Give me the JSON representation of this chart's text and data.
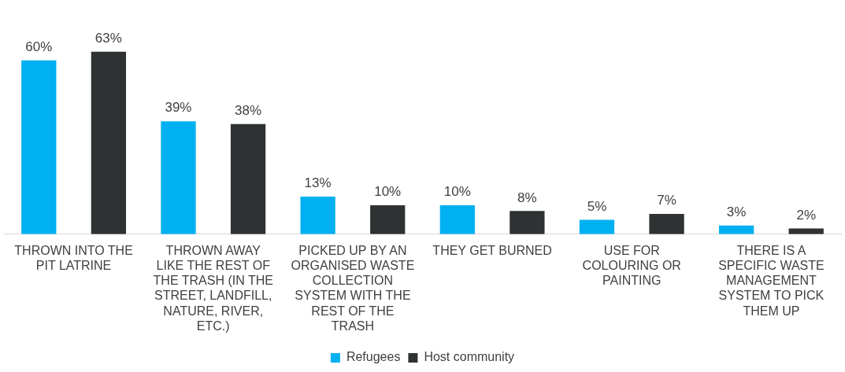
{
  "chart_data": {
    "type": "bar",
    "categories": [
      "THROWN INTO THE PIT LATRINE",
      "THROWN AWAY LIKE THE REST OF THE TRASH (IN THE STREET, LANDFILL, NATURE, RIVER, ETC.)",
      "PICKED UP BY AN ORGANISED WASTE COLLECTION SYSTEM WITH THE REST OF THE TRASH",
      "THEY GET BURNED",
      "USE FOR COLOURING OR PAINTING",
      "THERE IS A SPECIFIC WASTE MANAGEMENT SYSTEM TO PICK THEM UP"
    ],
    "series": [
      {
        "name": "Refugees",
        "color": "#00b0f0",
        "values": [
          60,
          39,
          13,
          10,
          5,
          3
        ],
        "value_labels": [
          "60%",
          "39%",
          "13%",
          "10%",
          "5%",
          "3%"
        ]
      },
      {
        "name": "Host community",
        "color": "#2f3233",
        "values": [
          63,
          38,
          10,
          8,
          7,
          2
        ],
        "value_labels": [
          "63%",
          "38%",
          "10%",
          "8%",
          "7%",
          "2%"
        ]
      }
    ],
    "legend": "bottom",
    "grid": false
  }
}
